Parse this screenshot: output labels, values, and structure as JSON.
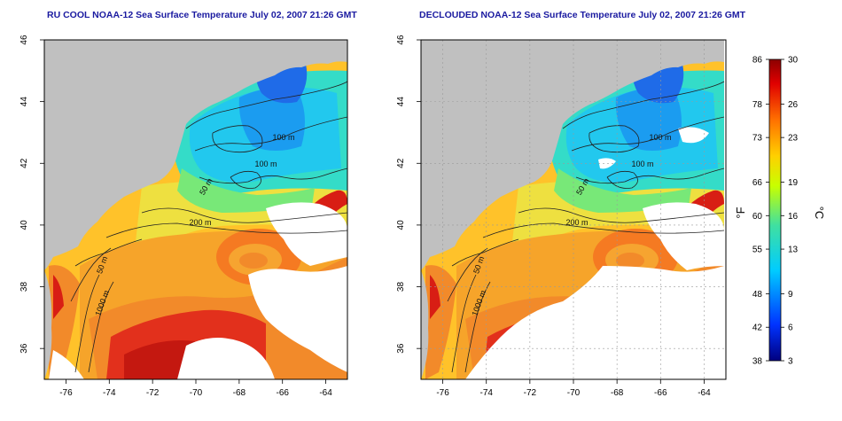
{
  "titles": {
    "left": "RU COOL NOAA-12 Sea Surface Temperature July 02, 2007 21:26 GMT",
    "right": "DECLOUDED NOAA-12 Sea Surface Temperature July 02, 2007 21:26 GMT"
  },
  "axes": {
    "lon_ticks": [
      "-76",
      "-74",
      "-72",
      "-70",
      "-68",
      "-66",
      "-64"
    ],
    "lat_ticks": [
      "36",
      "38",
      "40",
      "42",
      "44",
      "46"
    ],
    "lon_range": [
      -77,
      -63
    ],
    "lat_range": [
      35,
      46
    ]
  },
  "contours": {
    "labels": [
      "100 m",
      "100 m",
      "50 m",
      "200 m",
      "50 m",
      "1000 m"
    ]
  },
  "colorbar": {
    "fahrenheit_ticks": [
      "86",
      "78",
      "73",
      "66",
      "60",
      "55",
      "48",
      "42",
      "38"
    ],
    "celsius_ticks": [
      "30",
      "26",
      "23",
      "19",
      "16",
      "13",
      "9",
      "6",
      "3"
    ],
    "fahrenheit_unit": "°F",
    "celsius_unit": "°C",
    "range_c": [
      3,
      30
    ],
    "colors": [
      "#00007f",
      "#0033ff",
      "#00ccff",
      "#40e0a0",
      "#c8ff00",
      "#ffd000",
      "#ff7000",
      "#e00000",
      "#8c0000"
    ]
  },
  "colors": {
    "land": "#c0c0c0",
    "title": "#1a1aa0",
    "contour": "#222222",
    "cloud": "#ffffff"
  }
}
